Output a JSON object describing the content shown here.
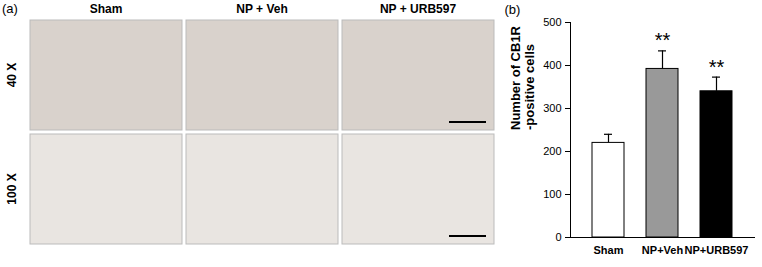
{
  "chart_data": {
    "type": "bar",
    "categories": [
      "Sham",
      "NP+Veh",
      "NP+URB597"
    ],
    "values": [
      220,
      392,
      340
    ],
    "errors": [
      20,
      42,
      33
    ],
    "colors": [
      "#ffffff",
      "#999999",
      "#000000"
    ],
    "y_label": "Number of CB1R\n-positive cells",
    "ylim": [
      0,
      500
    ],
    "yticks": [
      0,
      100,
      200,
      300,
      400,
      500
    ],
    "annotations": [
      {
        "category": "NP+Veh",
        "text": "**"
      },
      {
        "category": "NP+URB597",
        "text": "**"
      }
    ],
    "grid": false
  },
  "panel_b_label": "(b)",
  "panel_a": {
    "label": "(a)",
    "columns": [
      "Sham",
      "NP + Veh",
      "NP + URB597"
    ],
    "rows": [
      "40 X",
      "100 X"
    ]
  }
}
